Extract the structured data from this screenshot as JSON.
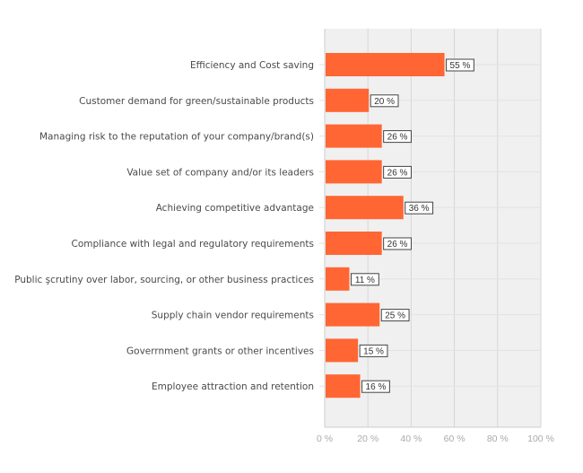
{
  "chart_data": {
    "type": "bar",
    "orientation": "horizontal",
    "categories": [
      "Efficiency and Cost saving",
      "Customer demand for green/sustainable products",
      "Managing risk to the reputation of your company/brand(s)",
      "Value set of company and/or its leaders",
      "Achieving competitive advantage",
      "Compliance with legal and regulatory requirements",
      "Public şcrutiny over labor, sourcing, or other business practices",
      "Supply chain vendor requirements",
      "Goverrnment grants or other incentives",
      "Employee attraction and retention"
    ],
    "values": [
      55,
      20,
      26,
      26,
      36,
      26,
      11,
      25,
      15,
      16
    ],
    "data_labels": [
      "55 %",
      "20 %",
      "26 %",
      "26 %",
      "36 %",
      "26 %",
      "11 %",
      "25 %",
      "15 %",
      "16 %"
    ],
    "xticks": [
      "0 %",
      "20 %",
      "40 %",
      "60 %",
      "80 %",
      "100 %"
    ],
    "xlim": [
      0,
      100
    ],
    "grid": true,
    "title": "",
    "xlabel": "",
    "ylabel": "",
    "colors": {
      "bar": "#FF6633",
      "plot_bg": "#F0F0F0",
      "grid": "#D6D6D6"
    }
  }
}
